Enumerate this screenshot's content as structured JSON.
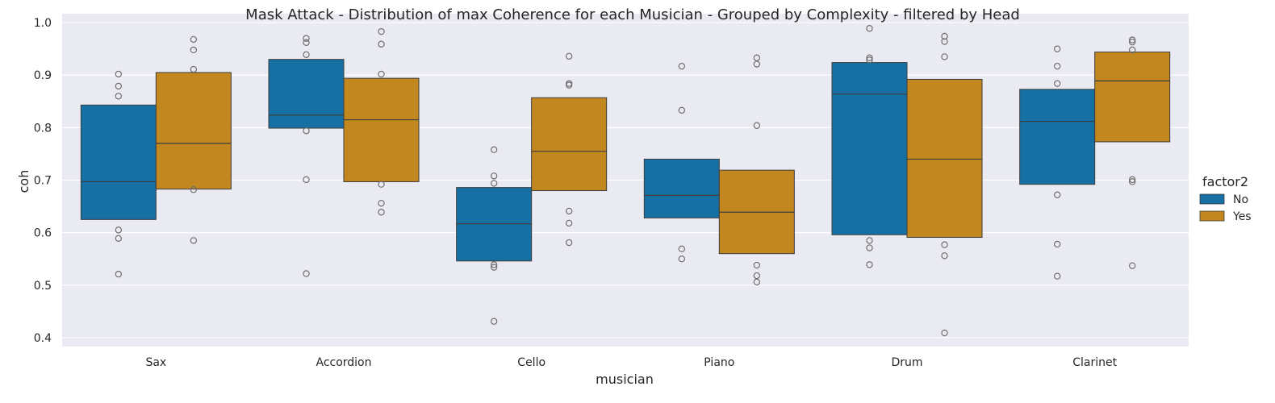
{
  "chart_data": {
    "type": "box",
    "title": "Mask Attack  - Distribution of max Coherence for each Musician - Grouped by Complexity - filtered by Head",
    "xlabel": "musician",
    "ylabel": "coh",
    "categories": [
      "Sax",
      "Accordion",
      "Cello",
      "Piano",
      "Drum",
      "Clarinet"
    ],
    "y_ticks": [
      0.4,
      0.5,
      0.6,
      0.7,
      0.8,
      0.9,
      1.0
    ],
    "y_tick_labels": [
      "0.4",
      "0.5",
      "0.6",
      "0.7",
      "0.8",
      "0.9",
      "1.0"
    ],
    "ylim": [
      0.383,
      1.017
    ],
    "grid": true,
    "legend": {
      "title": "factor2",
      "placement": "right"
    },
    "colors": {
      "No": "#1670a3",
      "Yes": "#c2871f",
      "background": "#eaeaf2",
      "grid": "#ffffff",
      "outline": "#3d3d3d"
    },
    "series": [
      {
        "name": "No",
        "boxes": [
          {
            "category": "Sax",
            "q1": 0.625,
            "median": 0.697,
            "q3": 0.843,
            "outliers": [
              0.902,
              0.879,
              0.86,
              0.605,
              0.589,
              0.521
            ]
          },
          {
            "category": "Accordion",
            "q1": 0.799,
            "median": 0.824,
            "q3": 0.93,
            "outliers": [
              0.97,
              0.962,
              0.939,
              0.794,
              0.701,
              0.522
            ]
          },
          {
            "category": "Cello",
            "q1": 0.546,
            "median": 0.617,
            "q3": 0.686,
            "outliers": [
              0.758,
              0.708,
              0.694,
              0.539,
              0.534,
              0.431
            ]
          },
          {
            "category": "Piano",
            "q1": 0.628,
            "median": 0.671,
            "q3": 0.74,
            "outliers": [
              0.917,
              0.833,
              0.569,
              0.55
            ]
          },
          {
            "category": "Drum",
            "q1": 0.596,
            "median": 0.864,
            "q3": 0.924,
            "outliers": [
              0.989,
              0.933,
              0.929,
              0.585,
              0.571,
              0.539
            ]
          },
          {
            "category": "Clarinet",
            "q1": 0.692,
            "median": 0.812,
            "q3": 0.873,
            "outliers": [
              0.95,
              0.917,
              0.884,
              0.672,
              0.578,
              0.517
            ]
          }
        ]
      },
      {
        "name": "Yes",
        "boxes": [
          {
            "category": "Sax",
            "q1": 0.683,
            "median": 0.77,
            "q3": 0.905,
            "outliers": [
              0.968,
              0.948,
              0.911,
              0.682,
              0.585
            ]
          },
          {
            "category": "Accordion",
            "q1": 0.697,
            "median": 0.815,
            "q3": 0.894,
            "outliers": [
              0.983,
              0.959,
              0.902,
              0.692,
              0.656,
              0.639
            ]
          },
          {
            "category": "Cello",
            "q1": 0.68,
            "median": 0.755,
            "q3": 0.857,
            "outliers": [
              0.936,
              0.884,
              0.881,
              0.641,
              0.618,
              0.581
            ]
          },
          {
            "category": "Piano",
            "q1": 0.56,
            "median": 0.639,
            "q3": 0.719,
            "outliers": [
              0.933,
              0.921,
              0.804,
              0.538,
              0.518,
              0.506
            ]
          },
          {
            "category": "Drum",
            "q1": 0.591,
            "median": 0.74,
            "q3": 0.892,
            "outliers": [
              0.974,
              0.964,
              0.935,
              0.577,
              0.556,
              0.409
            ]
          },
          {
            "category": "Clarinet",
            "q1": 0.773,
            "median": 0.889,
            "q3": 0.944,
            "outliers": [
              0.967,
              0.963,
              0.948,
              0.701,
              0.697,
              0.537
            ]
          }
        ]
      }
    ]
  }
}
